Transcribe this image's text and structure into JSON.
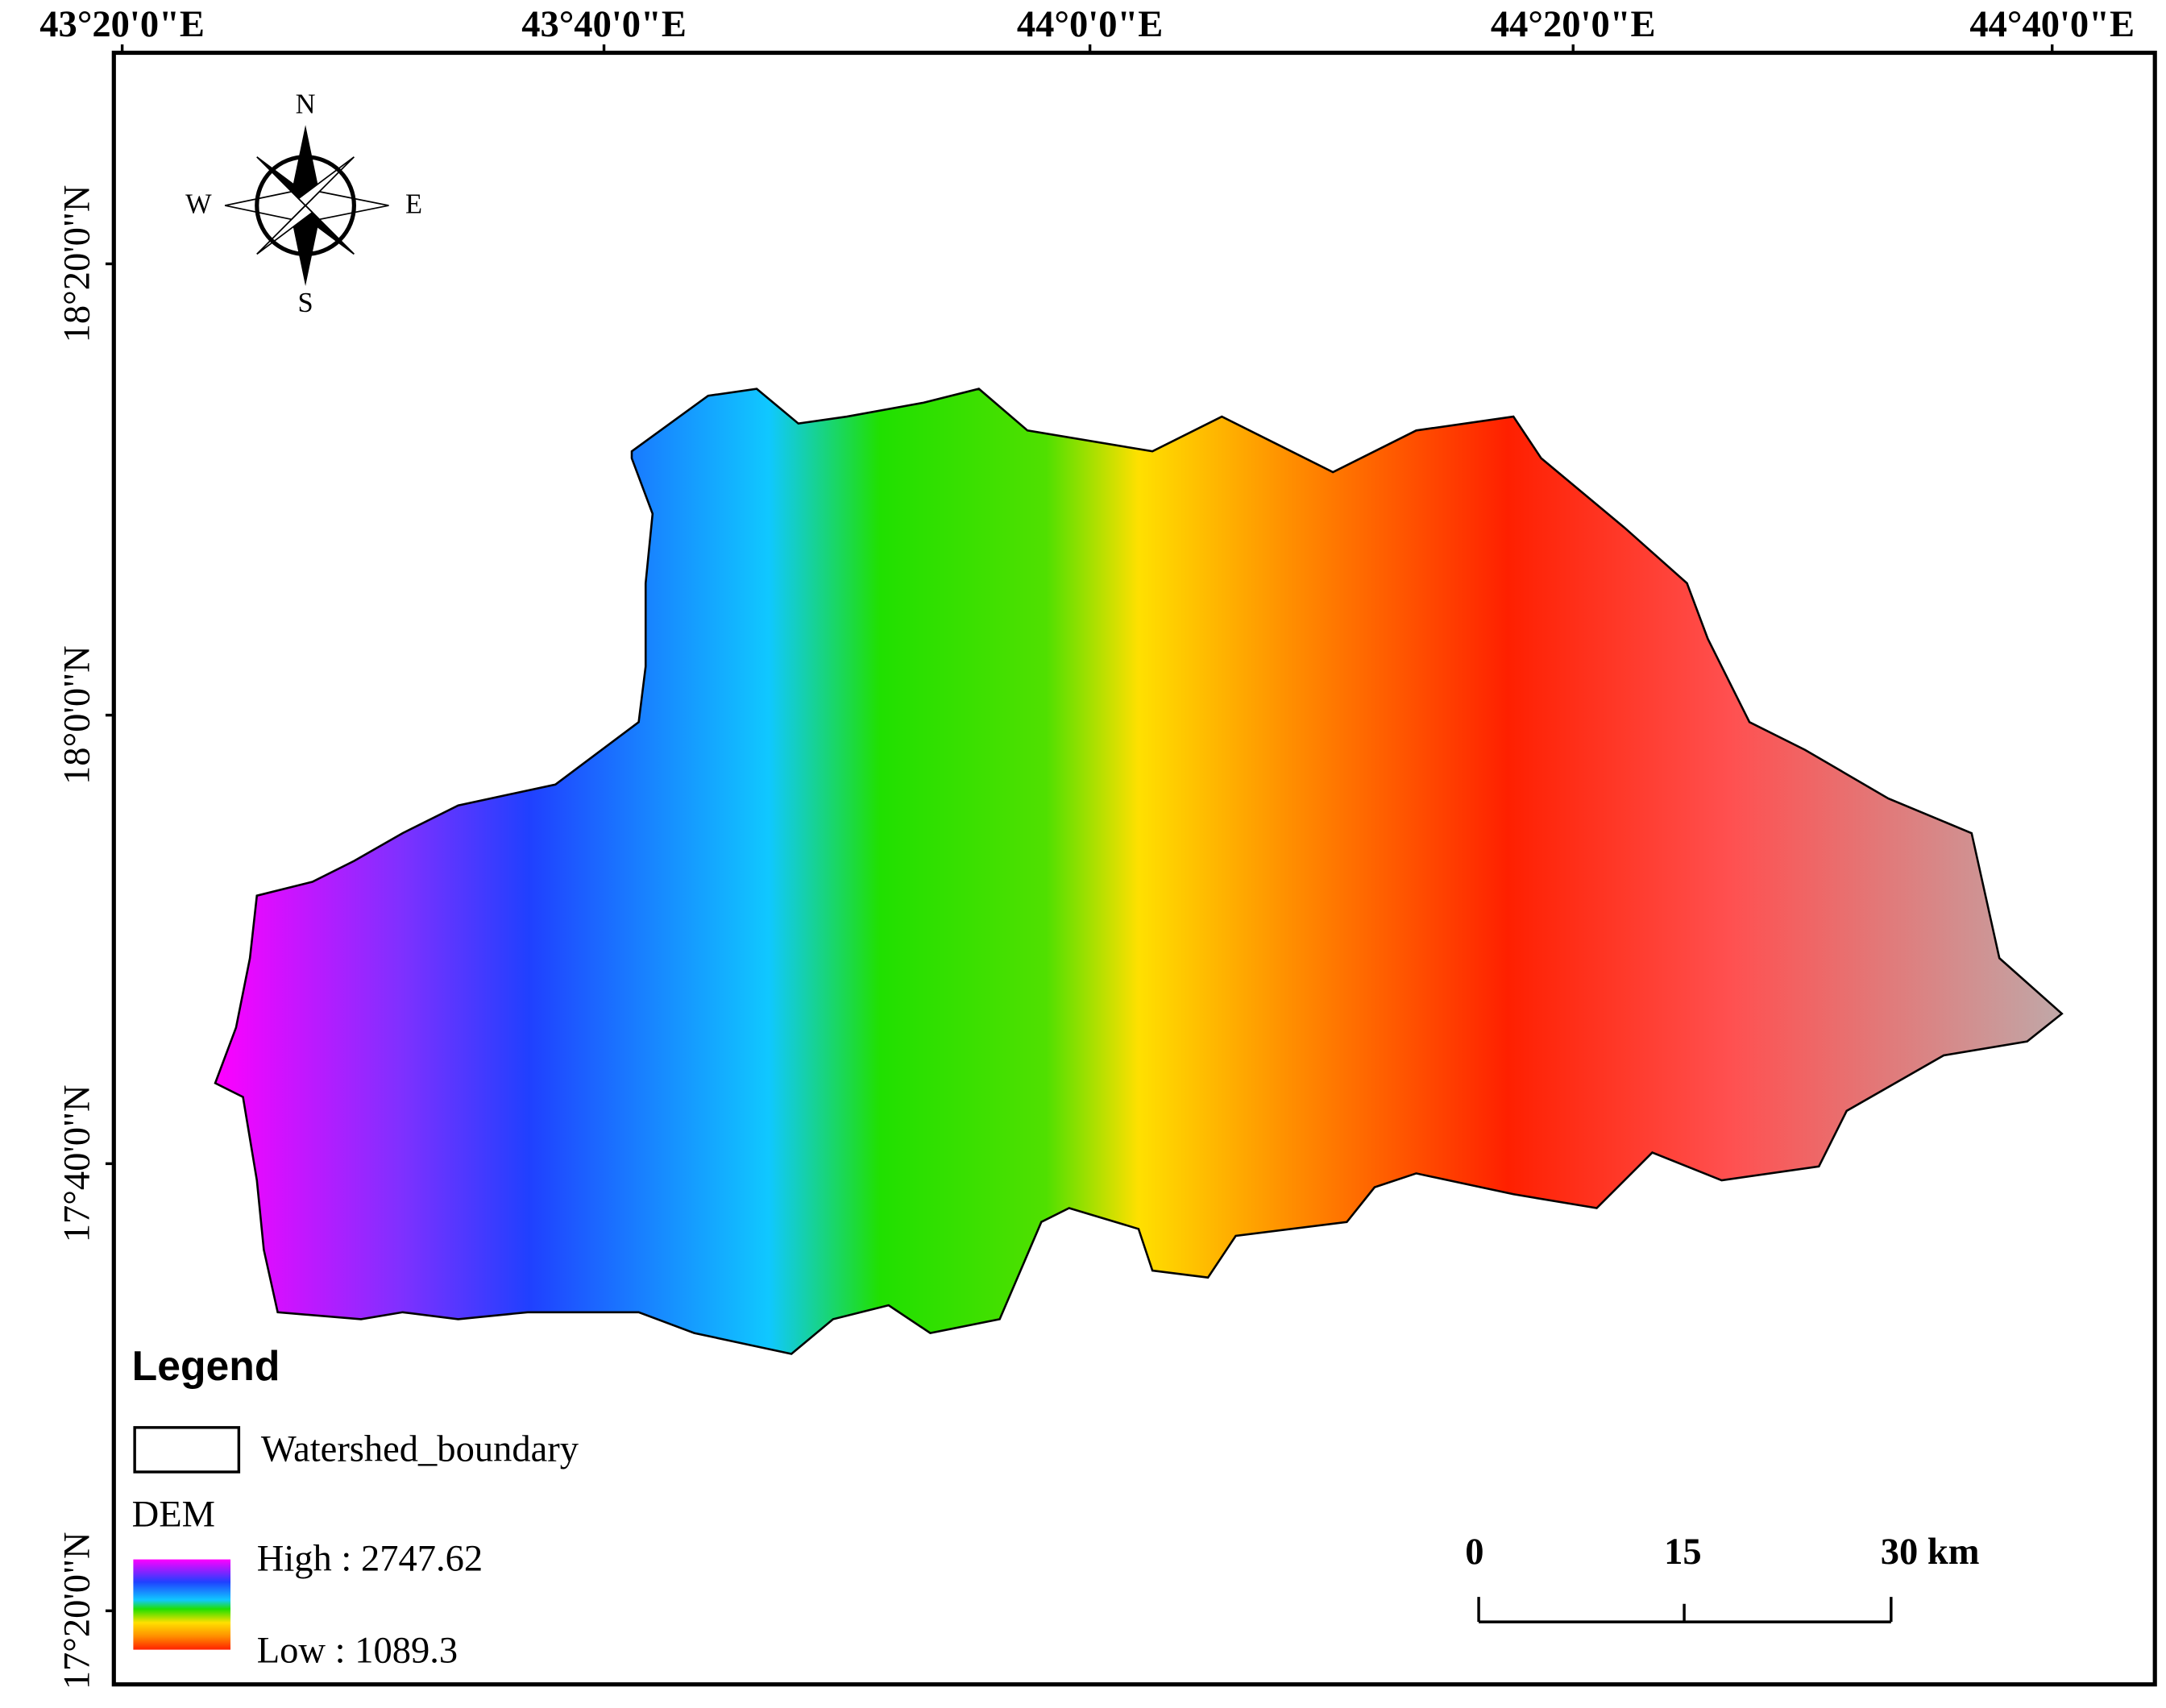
{
  "top_labels": [
    "43°20'0\"E",
    "43°40'0\"E",
    "44°0'0\"E",
    "44°20'0\"E",
    "44°40'0\"E"
  ],
  "left_labels": [
    "18°20'0\"N",
    "18°0'0\"N",
    "17°40'0\"N",
    "17°20'0\"N"
  ],
  "compass": {
    "n": "N",
    "s": "S",
    "e": "E",
    "w": "W"
  },
  "legend": {
    "title": "Legend",
    "boundary": "Watershed_boundary",
    "dem_title": "DEM",
    "high": "High : 2747.62",
    "low": "Low : 1089.3"
  },
  "scale_bar": {
    "labels": [
      "0",
      "15",
      "30 km"
    ]
  }
}
